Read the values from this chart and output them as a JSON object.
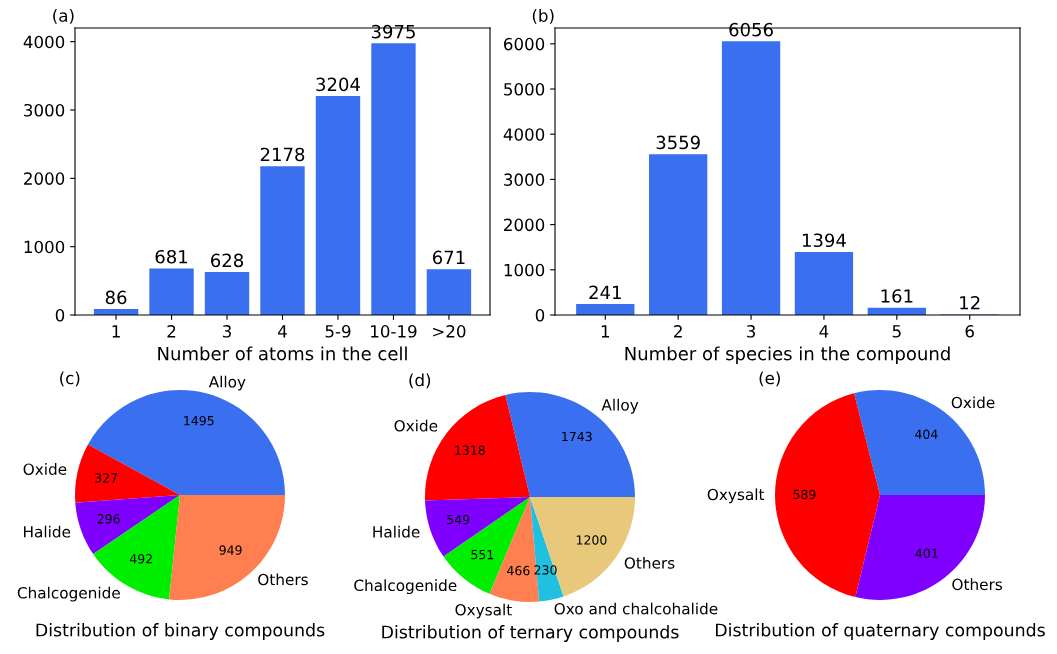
{
  "chart_data": [
    {
      "type": "bar",
      "title": "(a)",
      "xlabel": "Number of atoms in the cell",
      "categories": [
        "1",
        "2",
        "3",
        "4",
        "5-9",
        "10-19",
        ">20"
      ],
      "values": [
        86,
        681,
        628,
        2178,
        3204,
        3975,
        671
      ],
      "color": "#3a6ff0",
      "ylim": [
        0,
        4200
      ],
      "yticks": [
        0,
        1000,
        2000,
        3000,
        4000
      ],
      "data_labels": true,
      "grid": false,
      "legend": false
    },
    {
      "type": "bar",
      "title": "(b)",
      "xlabel": "Number of species in the compound",
      "categories": [
        "1",
        "2",
        "3",
        "4",
        "5",
        "6"
      ],
      "values": [
        241,
        3559,
        6056,
        1394,
        161,
        12
      ],
      "color": "#3a6ff0",
      "ylim": [
        0,
        6350
      ],
      "yticks": [
        0,
        1000,
        2000,
        3000,
        4000,
        5000,
        6000
      ],
      "data_labels": true,
      "grid": false,
      "legend": false
    },
    {
      "type": "pie",
      "title": "(c)",
      "xlabel": "Distribution of binary compounds",
      "categories": [
        "Alloy",
        "Oxide",
        "Halide",
        "Chalcogenide",
        "Others"
      ],
      "values": [
        1495,
        327,
        296,
        492,
        949
      ],
      "colors": [
        "#3a6ff0",
        "#ff0000",
        "#8000ff",
        "#00ee00",
        "#ff7f50"
      ],
      "data_labels": true
    },
    {
      "type": "pie",
      "title": "(d)",
      "xlabel": "Distribution of ternary compounds",
      "categories": [
        "Alloy",
        "Oxide",
        "Halide",
        "Chalcogenide",
        "Oxysalt",
        "Oxo and chalcohalide",
        "Others"
      ],
      "values": [
        1743,
        1318,
        549,
        551,
        466,
        230,
        1200
      ],
      "colors": [
        "#3a6ff0",
        "#ff0000",
        "#8000ff",
        "#00ee00",
        "#ff7f50",
        "#20c0e0",
        "#e8c87a"
      ],
      "data_labels": true
    },
    {
      "type": "pie",
      "title": "(e)",
      "xlabel": "Distribution of quaternary compounds",
      "categories": [
        "Oxide",
        "Oxysalt",
        "Others"
      ],
      "values": [
        404,
        589,
        401
      ],
      "colors": [
        "#3a6ff0",
        "#ff0000",
        "#8000ff"
      ],
      "data_labels": true
    }
  ]
}
